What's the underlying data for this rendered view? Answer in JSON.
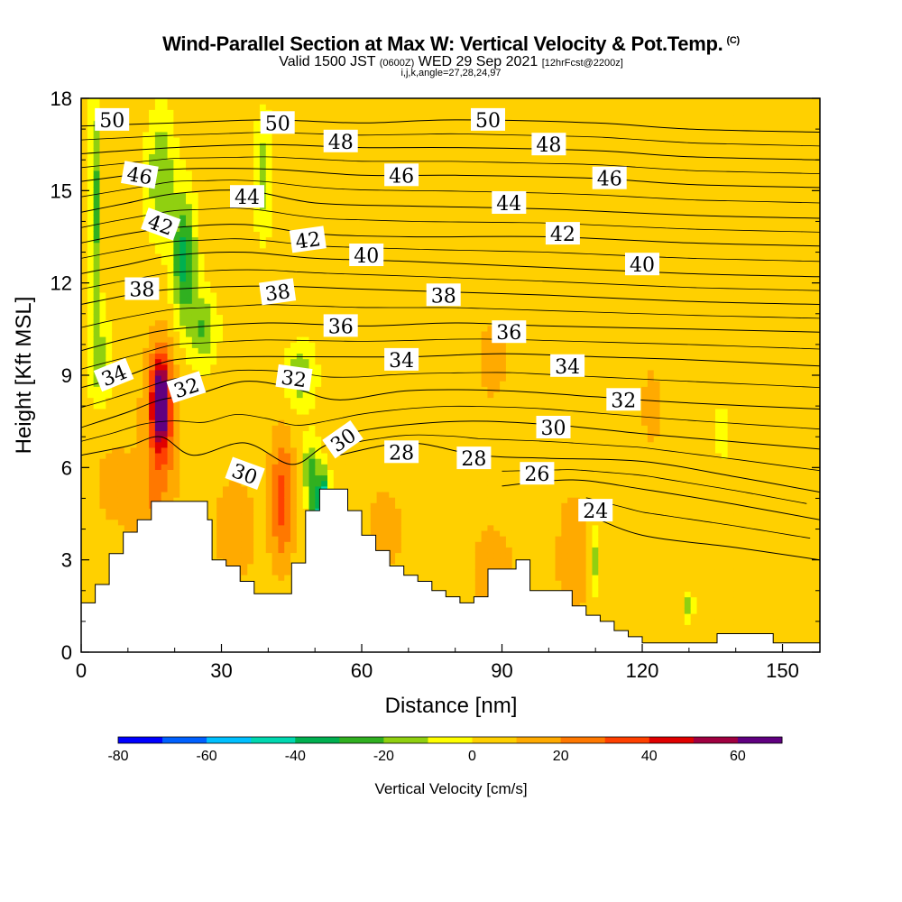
{
  "header": {
    "title_main": "Wind-Parallel Section at Max W: Vertical Velocity & Pot.Temp.",
    "title_mark": "(C)",
    "valid_prefix": "Valid 1500 JST",
    "valid_utc": "(0600Z)",
    "valid_date": "WED 29 Sep 2021",
    "forecast": "[12hrFcst@2200z]",
    "indices": "i,j,k,angle=27,28,24,97"
  },
  "chart_data": {
    "type": "heatmap",
    "xlabel": "Distance [nm]",
    "ylabel": "Height [Kft MSL]",
    "xlim": [
      0,
      158
    ],
    "ylim": [
      0,
      18
    ],
    "x_ticks": [
      0,
      30,
      60,
      90,
      120,
      150
    ],
    "y_ticks": [
      0,
      3,
      6,
      9,
      12,
      15,
      18
    ],
    "colorbar": {
      "title": "Vertical Velocity [cm/s]",
      "min": -80,
      "max": 70,
      "step": 10,
      "tick_labels": [
        "-80",
        "-60",
        "-40",
        "-20",
        "0",
        "20",
        "40",
        "60"
      ],
      "colors": [
        "#0000ff",
        "#0060ff",
        "#00c0ff",
        "#00d8b0",
        "#00b050",
        "#30b020",
        "#90d010",
        "#ffff00",
        "#ffd000",
        "#ffaa00",
        "#ff7800",
        "#ff4000",
        "#e00000",
        "#a00040",
        "#600080"
      ]
    },
    "background_value": 5,
    "velocity_features": [
      {
        "x": 3,
        "y": 14.5,
        "sx": 1.2,
        "sy": 3.5,
        "value": -25
      },
      {
        "x": 4,
        "y": 9.5,
        "sx": 2.5,
        "sy": 1.5,
        "value": -15
      },
      {
        "x": 17,
        "y": 15.5,
        "sx": 3,
        "sy": 2,
        "value": -20
      },
      {
        "x": 22,
        "y": 12.8,
        "sx": 2.5,
        "sy": 2,
        "value": -35
      },
      {
        "x": 26,
        "y": 10.5,
        "sx": 3,
        "sy": 1.2,
        "value": -20
      },
      {
        "x": 39,
        "y": 15.5,
        "sx": 2,
        "sy": 2,
        "value": -15
      },
      {
        "x": 47,
        "y": 9,
        "sx": 3,
        "sy": 1,
        "value": -20
      },
      {
        "x": 17,
        "y": 8.2,
        "sx": 1.8,
        "sy": 1.4,
        "value": 62
      },
      {
        "x": 17,
        "y": 7.5,
        "sx": 3.5,
        "sy": 2.5,
        "value": 30
      },
      {
        "x": 15,
        "y": 4,
        "sx": 4,
        "sy": 2,
        "value": 15
      },
      {
        "x": 7,
        "y": 5.5,
        "sx": 6,
        "sy": 2,
        "value": 12
      },
      {
        "x": 43,
        "y": 5,
        "sx": 2.5,
        "sy": 2,
        "value": 35
      },
      {
        "x": 33,
        "y": 4,
        "sx": 5,
        "sy": 2,
        "value": 15
      },
      {
        "x": 52,
        "y": 4.8,
        "sx": 1.2,
        "sy": 1,
        "value": -60
      },
      {
        "x": 50,
        "y": 4,
        "sx": 1.2,
        "sy": 1.5,
        "value": -35
      },
      {
        "x": 49,
        "y": 6,
        "sx": 2,
        "sy": 1,
        "value": -20
      },
      {
        "x": 65,
        "y": 4,
        "sx": 4,
        "sy": 1.5,
        "value": 15
      },
      {
        "x": 88,
        "y": 2.5,
        "sx": 4,
        "sy": 1.5,
        "value": 20
      },
      {
        "x": 105,
        "y": 3,
        "sx": 3,
        "sy": 2,
        "value": 20
      },
      {
        "x": 110,
        "y": 3,
        "sx": 1,
        "sy": 1,
        "value": -15
      },
      {
        "x": 130,
        "y": 1.5,
        "sx": 1,
        "sy": 0.5,
        "value": -15
      },
      {
        "x": 137,
        "y": 7.2,
        "sx": 1,
        "sy": 0.9,
        "value": -15
      },
      {
        "x": 122,
        "y": 8,
        "sx": 3,
        "sy": 2,
        "value": 12
      },
      {
        "x": 88,
        "y": 9.5,
        "sx": 5,
        "sy": 2,
        "value": 12
      },
      {
        "x": 140,
        "y": 11,
        "sx": 5,
        "sy": 3,
        "value": 10
      }
    ],
    "terrain": [
      [
        0,
        1.6
      ],
      [
        3,
        2.2
      ],
      [
        6,
        3.2
      ],
      [
        9,
        3.9
      ],
      [
        12,
        4.3
      ],
      [
        15,
        4.9
      ],
      [
        27,
        4.3
      ],
      [
        28,
        3
      ],
      [
        31,
        2.8
      ],
      [
        34,
        2.3
      ],
      [
        37,
        1.9
      ],
      [
        43,
        1.9
      ],
      [
        45,
        2.9
      ],
      [
        48,
        4.6
      ],
      [
        51,
        5.3
      ],
      [
        57,
        4.6
      ],
      [
        60,
        3.8
      ],
      [
        63,
        3.3
      ],
      [
        66,
        2.8
      ],
      [
        69,
        2.5
      ],
      [
        72,
        2.3
      ],
      [
        75,
        2
      ],
      [
        78,
        1.8
      ],
      [
        81,
        1.6
      ],
      [
        84,
        1.8
      ],
      [
        87,
        2.7
      ],
      [
        93,
        3
      ],
      [
        96,
        2
      ],
      [
        102,
        2
      ],
      [
        105,
        1.5
      ],
      [
        108,
        1.2
      ],
      [
        111,
        1
      ],
      [
        114,
        0.7
      ],
      [
        117,
        0.5
      ],
      [
        120,
        0.3
      ],
      [
        125,
        0.3
      ],
      [
        128,
        0.3
      ],
      [
        131,
        0.3
      ],
      [
        136,
        0.6
      ],
      [
        144,
        0.6
      ],
      [
        148,
        0.3
      ],
      [
        158,
        0.3
      ]
    ],
    "isentropes": [
      {
        "label": "24",
        "pts": [
          [
            108,
            4.5
          ],
          [
            120,
            3.8
          ],
          [
            140,
            3.4
          ],
          [
            158,
            3
          ]
        ]
      },
      {
        "label": "26",
        "pts": [
          [
            90,
            5.4
          ],
          [
            105,
            5.6
          ],
          [
            120,
            5.3
          ],
          [
            140,
            4.8
          ],
          [
            158,
            4.3
          ]
        ]
      },
      {
        "label": "28",
        "pts": [
          [
            55,
            6.4
          ],
          [
            70,
            6.8
          ],
          [
            85,
            6.4
          ],
          [
            100,
            6.3
          ],
          [
            120,
            6.2
          ],
          [
            140,
            5.7
          ],
          [
            158,
            5.2
          ]
        ]
      },
      {
        "label": "30",
        "pts": [
          [
            0,
            6.4
          ],
          [
            10,
            6.7
          ],
          [
            17,
            7
          ],
          [
            24,
            6.4
          ],
          [
            35,
            6.8
          ],
          [
            45,
            6.1
          ],
          [
            52,
            6.7
          ],
          [
            60,
            7.2
          ],
          [
            80,
            7.5
          ],
          [
            100,
            7.4
          ],
          [
            120,
            7.1
          ],
          [
            135,
            6.9
          ],
          [
            158,
            6.6
          ]
        ]
      },
      {
        "label": "32",
        "pts": [
          [
            0,
            7.3
          ],
          [
            10,
            7.8
          ],
          [
            17,
            8.2
          ],
          [
            25,
            8.4
          ],
          [
            35,
            8.8
          ],
          [
            45,
            8.6
          ],
          [
            55,
            8.2
          ],
          [
            70,
            8.5
          ],
          [
            90,
            8.5
          ],
          [
            110,
            8.3
          ],
          [
            130,
            8.1
          ],
          [
            158,
            7.9
          ]
        ]
      },
      {
        "label": "34",
        "pts": [
          [
            0,
            8.6
          ],
          [
            10,
            9
          ],
          [
            20,
            9.5
          ],
          [
            35,
            9.6
          ],
          [
            50,
            9.6
          ],
          [
            70,
            9.6
          ],
          [
            90,
            9.7
          ],
          [
            110,
            9.6
          ],
          [
            130,
            9.5
          ],
          [
            158,
            9.3
          ]
        ]
      },
      {
        "label": "36",
        "pts": [
          [
            0,
            9.8
          ],
          [
            10,
            10.2
          ],
          [
            20,
            10.5
          ],
          [
            40,
            10.7
          ],
          [
            60,
            10.6
          ],
          [
            80,
            10.7
          ],
          [
            100,
            10.6
          ],
          [
            130,
            10.5
          ],
          [
            158,
            10.4
          ]
        ]
      },
      {
        "label": "38",
        "pts": [
          [
            0,
            11.3
          ],
          [
            10,
            11.6
          ],
          [
            20,
            11.8
          ],
          [
            40,
            11.9
          ],
          [
            60,
            11.8
          ],
          [
            80,
            11.7
          ],
          [
            100,
            11.6
          ],
          [
            130,
            11.4
          ],
          [
            158,
            11.3
          ]
        ]
      },
      {
        "label": "40",
        "pts": [
          [
            0,
            12.3
          ],
          [
            10,
            12.6
          ],
          [
            20,
            12.9
          ],
          [
            35,
            13
          ],
          [
            50,
            12.8
          ],
          [
            70,
            12.7
          ],
          [
            100,
            12.5
          ],
          [
            130,
            12.3
          ],
          [
            158,
            12.2
          ]
        ]
      },
      {
        "label": "42",
        "pts": [
          [
            0,
            13.3
          ],
          [
            10,
            13.6
          ],
          [
            20,
            13.8
          ],
          [
            35,
            13.9
          ],
          [
            50,
            13.6
          ],
          [
            70,
            13.5
          ],
          [
            100,
            13.5
          ],
          [
            130,
            13.3
          ],
          [
            158,
            13.2
          ]
        ]
      },
      {
        "label": "44",
        "pts": [
          [
            0,
            14.3
          ],
          [
            10,
            14.6
          ],
          [
            20,
            14.9
          ],
          [
            35,
            15
          ],
          [
            50,
            14.6
          ],
          [
            70,
            14.5
          ],
          [
            100,
            14.4
          ],
          [
            130,
            14.2
          ],
          [
            158,
            14.1
          ]
        ]
      },
      {
        "label": "46",
        "pts": [
          [
            0,
            15.3
          ],
          [
            10,
            15.5
          ],
          [
            20,
            15.7
          ],
          [
            40,
            15.7
          ],
          [
            60,
            15.5
          ],
          [
            80,
            15.5
          ],
          [
            110,
            15.4
          ],
          [
            130,
            15.2
          ],
          [
            158,
            15.1
          ]
        ]
      },
      {
        "label": "48",
        "pts": [
          [
            0,
            16.2
          ],
          [
            20,
            16.4
          ],
          [
            40,
            16.5
          ],
          [
            60,
            16.4
          ],
          [
            80,
            16.4
          ],
          [
            110,
            16.3
          ],
          [
            130,
            16.1
          ],
          [
            158,
            16
          ]
        ]
      },
      {
        "label": "50",
        "pts": [
          [
            0,
            17.1
          ],
          [
            20,
            17.2
          ],
          [
            40,
            17.3
          ],
          [
            60,
            17.2
          ],
          [
            80,
            17.3
          ],
          [
            110,
            17.2
          ],
          [
            130,
            17
          ],
          [
            158,
            16.9
          ]
        ]
      }
    ],
    "contour_labels": [
      {
        "text": "50",
        "x": 6.6,
        "y": 17.3,
        "angle": 0
      },
      {
        "text": "50",
        "x": 42,
        "y": 17.2,
        "angle": 0
      },
      {
        "text": "50",
        "x": 87,
        "y": 17.3,
        "angle": 0
      },
      {
        "text": "48",
        "x": 55.5,
        "y": 16.6,
        "angle": 0
      },
      {
        "text": "48",
        "x": 100,
        "y": 16.5,
        "angle": 0
      },
      {
        "text": "46",
        "x": 12.5,
        "y": 15.5,
        "angle": 10
      },
      {
        "text": "46",
        "x": 68.5,
        "y": 15.5,
        "angle": 0
      },
      {
        "text": "46",
        "x": 113,
        "y": 15.4,
        "angle": 0
      },
      {
        "text": "44",
        "x": 35.5,
        "y": 14.8,
        "angle": 0
      },
      {
        "text": "44",
        "x": 91.5,
        "y": 14.6,
        "angle": 0
      },
      {
        "text": "42",
        "x": 17,
        "y": 13.9,
        "angle": 20
      },
      {
        "text": "42",
        "x": 48.5,
        "y": 13.4,
        "angle": -8
      },
      {
        "text": "42",
        "x": 103,
        "y": 13.6,
        "angle": 0
      },
      {
        "text": "40",
        "x": 61,
        "y": 12.9,
        "angle": 0
      },
      {
        "text": "40",
        "x": 120,
        "y": 12.6,
        "angle": 0
      },
      {
        "text": "38",
        "x": 13,
        "y": 11.8,
        "angle": 0
      },
      {
        "text": "38",
        "x": 42,
        "y": 11.7,
        "angle": -8
      },
      {
        "text": "38",
        "x": 77.5,
        "y": 11.6,
        "angle": 0
      },
      {
        "text": "36",
        "x": 55.5,
        "y": 10.6,
        "angle": 0
      },
      {
        "text": "36",
        "x": 91.5,
        "y": 10.4,
        "angle": 0
      },
      {
        "text": "34",
        "x": 7,
        "y": 9,
        "angle": -22
      },
      {
        "text": "34",
        "x": 68.5,
        "y": 9.5,
        "angle": 0
      },
      {
        "text": "34",
        "x": 104,
        "y": 9.3,
        "angle": 0
      },
      {
        "text": "32",
        "x": 22.5,
        "y": 8.6,
        "angle": -18
      },
      {
        "text": "32",
        "x": 45.5,
        "y": 8.9,
        "angle": 8
      },
      {
        "text": "32",
        "x": 116,
        "y": 8.2,
        "angle": 0
      },
      {
        "text": "30",
        "x": 35,
        "y": 5.8,
        "angle": 20
      },
      {
        "text": "30",
        "x": 56,
        "y": 6.9,
        "angle": -35
      },
      {
        "text": "30",
        "x": 101,
        "y": 7.3,
        "angle": 0
      },
      {
        "text": "28",
        "x": 68.5,
        "y": 6.5,
        "angle": 0
      },
      {
        "text": "28",
        "x": 84,
        "y": 6.3,
        "angle": 0
      },
      {
        "text": "26",
        "x": 97.5,
        "y": 5.8,
        "angle": 0
      },
      {
        "text": "24",
        "x": 110,
        "y": 4.6,
        "angle": 0
      }
    ]
  }
}
